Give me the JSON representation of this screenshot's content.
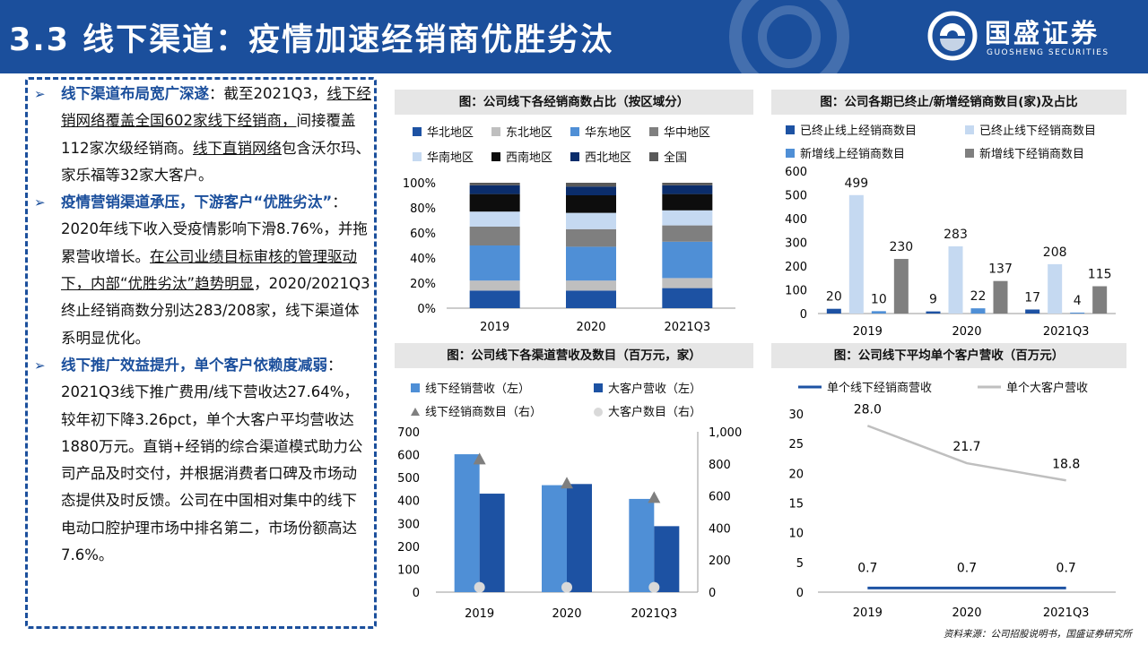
{
  "header": {
    "title": "3.3 线下渠道：疫情加速经销商优胜劣汰",
    "logo_cn": "国盛证券",
    "logo_en": "GUOSHENG SECURITIES"
  },
  "text_panel": {
    "p1_bold": "线下渠道布局宽广深遂",
    "p1_a": "：截至2021Q3，",
    "p1_b": "线下经销网络覆盖全国602家线下经销商，",
    "p1_c": "间接覆盖112家次级经销商。",
    "p1_d": "线下直销网络",
    "p1_e": "包含沃尔玛、家乐福等32家大客户。",
    "p2_bold": "疫情营销渠道承压，下游客户“优胜劣汰”",
    "p2_a": "：2020年线下收入受疫情影响下滑8.76%，并拖累营收增长。",
    "p2_b": "在公司业绩目标审核的管理驱动下，内部“优胜劣汰”趋势明显",
    "p2_c": "，2020/2021Q3终止经销商数分别达283/208家，线下渠道体系明显优化。",
    "p3_bold": "线下推广效益提升，单个客户依赖度减弱",
    "p3_a": "：2021Q3线下推广费用/线下营收达27.64%，较年初下降3.26pct，单个大客户平均营收达1880万元。直销+经销的综合渠道模式助力公司产品及时交付，并根据消费者口碑及市场动态提供及时反馈。公司在中国相对集中的线下电动口腔护理市场中排名第二，市场份额高达7.6%。"
  },
  "source": "资料来源：公司招股说明书，国盛证券研究所",
  "chart_data": [
    {
      "type": "bar",
      "stacked": true,
      "title": "图：公司线下各经销商数占比（按区域分）",
      "categories": [
        "2019",
        "2020",
        "2021Q3"
      ],
      "y_tick_labels": [
        "0%",
        "20%",
        "40%",
        "60%",
        "80%",
        "100%"
      ],
      "ylim": [
        0,
        100
      ],
      "legend_position": "top",
      "series": [
        {
          "name": "华北地区",
          "color": "#1d52a3",
          "values": [
            14,
            14,
            16
          ]
        },
        {
          "name": "东北地区",
          "color": "#bfbfbf",
          "values": [
            8,
            8,
            8
          ]
        },
        {
          "name": "华东地区",
          "color": "#4f8fd6",
          "values": [
            28,
            27,
            29
          ]
        },
        {
          "name": "华中地区",
          "color": "#7f7f7f",
          "values": [
            15,
            14,
            13
          ]
        },
        {
          "name": "华南地区",
          "color": "#c5d9f1",
          "values": [
            12,
            13,
            12
          ]
        },
        {
          "name": "西南地区",
          "color": "#0d0d0d",
          "values": [
            14,
            14,
            13
          ]
        },
        {
          "name": "西北地区",
          "color": "#0b2d6b",
          "values": [
            7,
            7,
            7
          ]
        },
        {
          "name": "全国",
          "color": "#595959",
          "values": [
            2,
            3,
            2
          ]
        }
      ]
    },
    {
      "type": "bar",
      "title": "图：公司各期已终止/新增经销商数目(家)及占比",
      "categories": [
        "2019",
        "2020",
        "2021Q3"
      ],
      "ylim": [
        0,
        600
      ],
      "y_ticks": [
        0,
        100,
        200,
        300,
        400,
        500,
        600
      ],
      "legend_position": "top",
      "series": [
        {
          "name": "已终止线上经销商数目",
          "color": "#1d52a3",
          "values": [
            20,
            9,
            17
          ]
        },
        {
          "name": "已终止线下经销商数目",
          "color": "#c5d9f1",
          "values": [
            499,
            283,
            208
          ]
        },
        {
          "name": "新增线上经销商数目",
          "color": "#4f8fd6",
          "values": [
            10,
            22,
            4
          ]
        },
        {
          "name": "新增线下经销商数目",
          "color": "#7f7f7f",
          "values": [
            230,
            137,
            115
          ]
        }
      ]
    },
    {
      "type": "bar",
      "title": "图：公司线下各渠道营收及数目（百万元，家）",
      "categories": [
        "2019",
        "2020",
        "2021Q3"
      ],
      "ylim": [
        0,
        700
      ],
      "y_ticks": [
        0,
        100,
        200,
        300,
        400,
        500,
        600,
        700
      ],
      "y2lim": [
        0,
        1000
      ],
      "y2_tick_labels": [
        "0",
        "200",
        "400",
        "600",
        "800",
        "1,000"
      ],
      "legend_position": "top",
      "series": [
        {
          "name": "线下经销营收（左）",
          "color": "#4f8fd6",
          "values": [
            602,
            467,
            407
          ]
        },
        {
          "name": "大客户营收（左）",
          "color": "#1d52a3",
          "values": [
            430,
            472,
            288
          ]
        },
        {
          "name": "线下经销商数目（右）",
          "color": "#7f7f7f",
          "marker": "triangle",
          "axis": "right",
          "values": [
            830,
            680,
            590
          ]
        },
        {
          "name": "大客户数目（右）",
          "color": "#d9d9d9",
          "marker": "circle",
          "axis": "right",
          "values": [
            30,
            30,
            30
          ]
        }
      ]
    },
    {
      "type": "line",
      "title": "图：公司线下平均单个客户营收（百万元）",
      "categories": [
        "2019",
        "2020",
        "2021Q3"
      ],
      "ylim": [
        0,
        30
      ],
      "y_ticks": [
        0,
        5,
        10,
        15,
        20,
        25,
        30
      ],
      "legend_position": "top",
      "series": [
        {
          "name": "单个线下经销商营收",
          "color": "#1d52a3",
          "values": [
            0.7,
            0.7,
            0.7
          ],
          "labels": [
            "0.7",
            "0.7",
            "0.7"
          ]
        },
        {
          "name": "单个大客户营收",
          "color": "#bfbfbf",
          "values": [
            28.0,
            21.7,
            18.8
          ],
          "labels": [
            "28.0",
            "21.7",
            "18.8"
          ]
        }
      ]
    }
  ]
}
